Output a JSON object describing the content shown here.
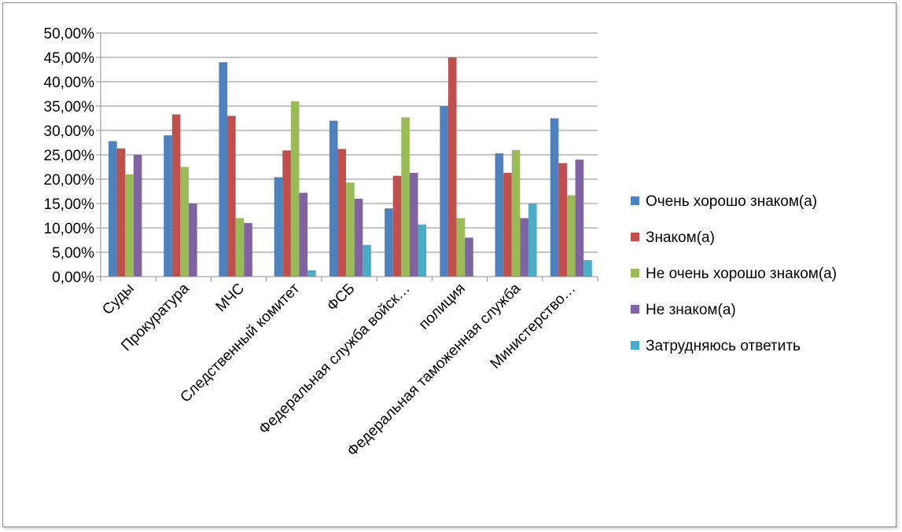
{
  "chart_data": {
    "type": "bar",
    "title": "",
    "xlabel": "",
    "ylabel": "",
    "ylim": [
      0,
      0.5
    ],
    "ytick_step": 0.05,
    "ytick_labels": [
      "0,00%",
      "5,00%",
      "10,00%",
      "15,00%",
      "20,00%",
      "25,00%",
      "30,00%",
      "35,00%",
      "40,00%",
      "45,00%",
      "50,00%"
    ],
    "grid": true,
    "legend_position": "right",
    "categories": [
      "Суды",
      "Прокуратура",
      "МЧС",
      "Следственный комитет",
      "ФСБ",
      "Федеральная служба войск…",
      "полиция",
      "Федеральная таможенная служба",
      "Министерство…"
    ],
    "series": [
      {
        "name": "Очень хорошо знаком(а)",
        "color": "#4f81bd",
        "values": [
          0.278,
          0.29,
          0.44,
          0.204,
          0.32,
          0.14,
          0.35,
          0.253,
          0.325
        ]
      },
      {
        "name": "Знаком(а)",
        "color": "#c0504d",
        "values": [
          0.263,
          0.333,
          0.33,
          0.259,
          0.262,
          0.207,
          0.45,
          0.213,
          0.233
        ]
      },
      {
        "name": "Не очень хорошо знаком(а)",
        "color": "#9bbb59",
        "values": [
          0.21,
          0.225,
          0.12,
          0.36,
          0.193,
          0.327,
          0.12,
          0.26,
          0.167
        ]
      },
      {
        "name": "Не знаком(а)",
        "color": "#8064a2",
        "values": [
          0.25,
          0.15,
          0.11,
          0.172,
          0.16,
          0.213,
          0.08,
          0.12,
          0.24
        ]
      },
      {
        "name": "Затрудняюсь ответить",
        "color": "#4bacc6",
        "values": [
          0,
          0,
          0,
          0.013,
          0.065,
          0.107,
          0,
          0.15,
          0.034
        ]
      }
    ]
  }
}
